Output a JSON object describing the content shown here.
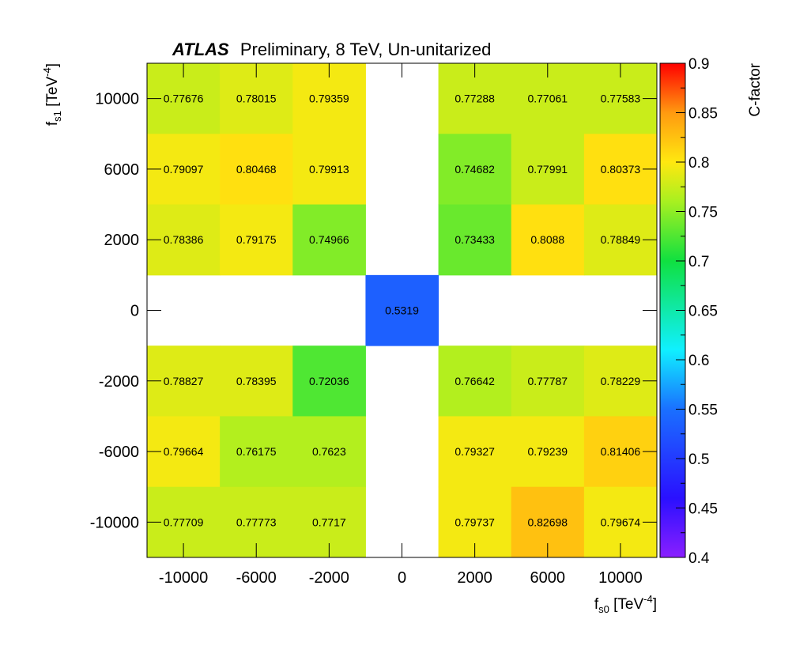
{
  "chart_data": {
    "type": "heatmap",
    "title": {
      "experiment": "ATLAS",
      "rest": "Preliminary, 8 TeV, Un-unitarized"
    },
    "xlabel": {
      "main": "f",
      "sub": "s0",
      "unit_open": " [TeV",
      "unit_sup": "-4",
      "unit_close": "]"
    },
    "ylabel": {
      "main": "f",
      "sub": "s1",
      "unit_open": " [TeV",
      "unit_sup": "-4",
      "unit_close": "]"
    },
    "zlabel": "C-factor",
    "x_categories": [
      "-10000",
      "-6000",
      "-2000",
      "0",
      "2000",
      "6000",
      "10000"
    ],
    "y_categories": [
      "10000",
      "6000",
      "2000",
      "0",
      "-2000",
      "-6000",
      "-10000"
    ],
    "zlim": [
      0.4,
      0.9
    ],
    "colorbar_ticks": [
      "0.4",
      "0.45",
      "0.5",
      "0.55",
      "0.6",
      "0.65",
      "0.7",
      "0.75",
      "0.8",
      "0.85",
      "0.9"
    ],
    "cells": [
      [
        "0.77676",
        "0.78015",
        "0.79359",
        null,
        "0.77288",
        "0.77061",
        "0.77583"
      ],
      [
        "0.79097",
        "0.80468",
        "0.79913",
        null,
        "0.74682",
        "0.77991",
        "0.80373"
      ],
      [
        "0.78386",
        "0.79175",
        "0.74966",
        null,
        "0.73433",
        "0.8088",
        "0.78849"
      ],
      [
        null,
        null,
        null,
        "0.5319",
        null,
        null,
        null
      ],
      [
        "0.78827",
        "0.78395",
        "0.72036",
        null,
        "0.76642",
        "0.77787",
        "0.78229"
      ],
      [
        "0.79664",
        "0.76175",
        "0.7623",
        null,
        "0.79327",
        "0.79239",
        "0.81406"
      ],
      [
        "0.77709",
        "0.77773",
        "0.7717",
        null,
        "0.79737",
        "0.82698",
        "0.79674"
      ]
    ]
  }
}
